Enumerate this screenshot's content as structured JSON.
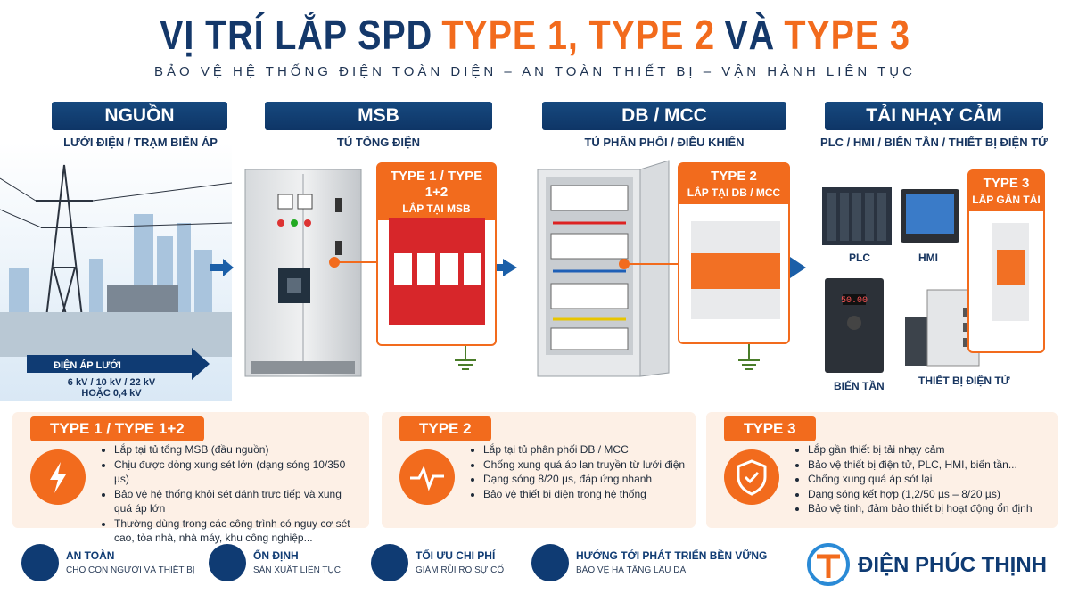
{
  "header": {
    "title_parts": [
      "VỊ TRÍ LẮP SPD",
      "TYPE 1, TYPE 2",
      "VÀ",
      "TYPE 3"
    ],
    "subtitle": "BẢO VỆ HỆ THỐNG ĐIỆN TOÀN DIỆN – AN TOÀN THIẾT BỊ – VẬN HÀNH LIÊN TỤC"
  },
  "stages": [
    {
      "title": "NGUỒN",
      "subtitle": "LƯỚI ĐIỆN / TRẠM BIẾN ÁP"
    },
    {
      "title": "MSB",
      "subtitle": "TỦ TỔNG ĐIỆN",
      "badge": {
        "title": "TYPE 1 / TYPE 1+2",
        "subtitle": "LẮP TẠI MSB"
      }
    },
    {
      "title": "DB / MCC",
      "subtitle": "TỦ PHÂN PHỐI / ĐIỀU KHIỂN",
      "badge": {
        "title": "TYPE 2",
        "subtitle": "LẮP TẠI DB / MCC"
      }
    },
    {
      "title": "TẢI NHẠY CẢM",
      "subtitle": "PLC / HMI / BIẾN TẦN / THIẾT BỊ ĐIỆN TỬ",
      "badge": {
        "title": "TYPE 3",
        "subtitle": "LẮP GẦN TẢI"
      }
    }
  ],
  "source": {
    "label": "ĐIỆN ÁP LƯỚI",
    "lines": [
      "6 kV / 10 kV / 22 kV",
      "HOẶC 0,4 kV"
    ]
  },
  "devices": [
    "PLC",
    "HMI",
    "BIẾN TẦN",
    "THIẾT BỊ ĐIỆN TỬ"
  ],
  "cards": [
    {
      "title": "TYPE 1 / TYPE 1+2",
      "bullets": [
        "Lắp tại tủ tổng MSB (đầu nguồn)",
        "Chịu được dòng xung sét lớn (dạng sóng 10/350 µs)",
        "Bảo vệ hệ thống khỏi sét đánh trực tiếp và xung quá áp lớn",
        "Thường dùng trong các công trình có nguy cơ sét cao, tòa nhà, nhà máy, khu công nghiệp..."
      ]
    },
    {
      "title": "TYPE 2",
      "bullets": [
        "Lắp tại tủ phân phối DB / MCC",
        "Chống xung quá áp lan truyền từ lưới điện",
        "Dạng sóng 8/20 µs, đáp ứng nhanh",
        "Bảo vệ thiết bị điện trong hệ thống"
      ]
    },
    {
      "title": "TYPE 3",
      "bullets": [
        "Lắp gần thiết bị tải nhạy cảm",
        "Bảo vệ thiết bị điện tử, PLC, HMI, biến tần...",
        "Chống xung quá áp sót lại",
        "Dạng sóng kết hợp (1,2/50 µs – 8/20 µs)",
        "Bảo vệ tinh, đảm bảo thiết bị hoạt động ổn định"
      ]
    }
  ],
  "footer": {
    "items": [
      {
        "title": "AN TOÀN",
        "subtitle": "CHO CON NGƯỜI VÀ THIẾT BỊ"
      },
      {
        "title": "ỔN ĐỊNH",
        "subtitle": "SẢN XUẤT LIÊN TỤC"
      },
      {
        "title": "TỐI ƯU CHI PHÍ",
        "subtitle": "GIẢM RỦI RO SỰ CỐ"
      },
      {
        "title": "HƯỚNG TỚI PHÁT TRIỂN BỀN VỮNG",
        "subtitle": "BẢO VỆ HẠ TẦNG LÂU DÀI"
      }
    ],
    "brand": "ĐIỆN PHÚC THỊNH"
  }
}
